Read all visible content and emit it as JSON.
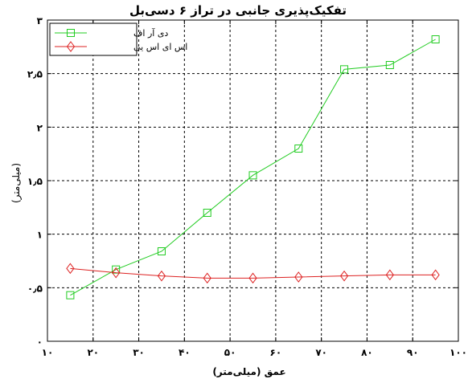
{
  "chart_data": {
    "type": "line",
    "title": "تفکیک‌پذیری جانبی در تراز ۶ دسی‌بل",
    "xlabel": "عمق (میلی‌متر)",
    "ylabel": "(میلی‌متر)",
    "xlim": [
      10,
      100
    ],
    "ylim": [
      0,
      3
    ],
    "xticks": [
      10,
      20,
      30,
      40,
      50,
      60,
      70,
      80,
      90,
      100
    ],
    "yticks": [
      0,
      0.5,
      1,
      1.5,
      2,
      2.5,
      3
    ],
    "xtick_labels": [
      "۱۰",
      "۲۰",
      "۳۰",
      "۴۰",
      "۵۰",
      "۶۰",
      "۷۰",
      "۸۰",
      "۹۰",
      "۱۰۰"
    ],
    "ytick_labels": [
      "۰",
      "۰٫۵",
      "۱",
      "۱٫۵",
      "۲",
      "۲٫۵",
      "۳"
    ],
    "grid": true,
    "legend_position": "top-left",
    "series": [
      {
        "name": "دی آر اف",
        "color": "#22cc22",
        "marker": "square",
        "x": [
          15,
          25,
          35,
          45,
          55,
          65,
          75,
          85,
          95
        ],
        "values": [
          0.43,
          0.67,
          0.84,
          1.2,
          1.55,
          1.8,
          2.54,
          2.58,
          2.82
        ]
      },
      {
        "name": "اس ای اس یی",
        "color": "#dd2222",
        "marker": "diamond",
        "x": [
          15,
          25,
          35,
          45,
          55,
          65,
          75,
          85,
          95
        ],
        "values": [
          0.68,
          0.64,
          0.61,
          0.59,
          0.59,
          0.6,
          0.61,
          0.62,
          0.62
        ]
      }
    ]
  }
}
